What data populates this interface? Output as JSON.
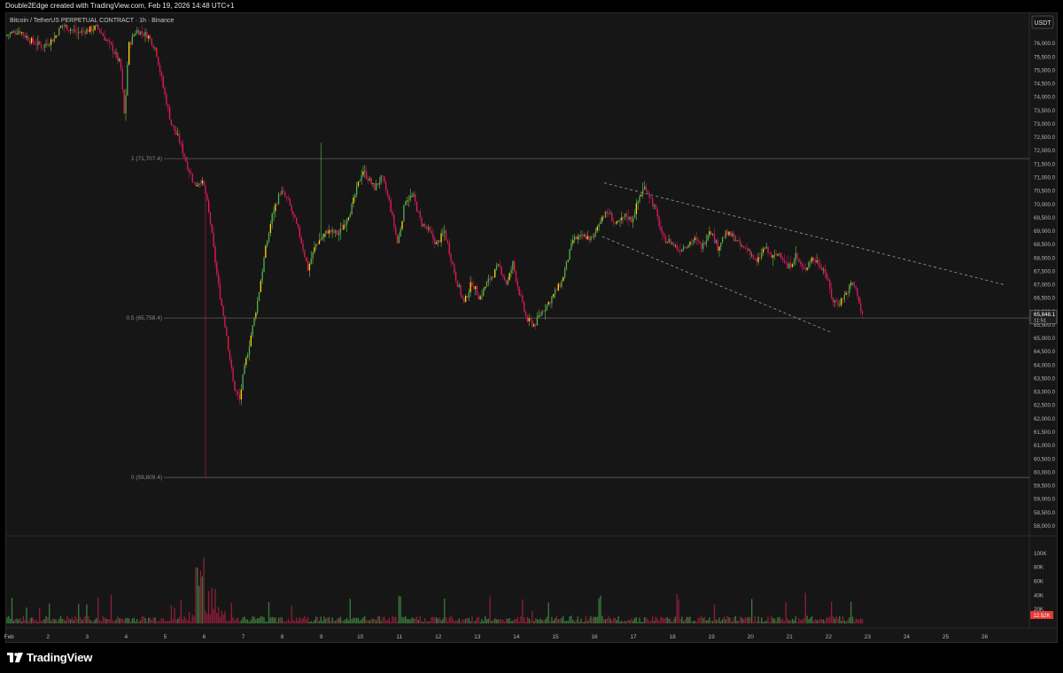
{
  "header": {
    "created_text": "Double2Edge created with TradingView.com, Feb 19, 2026 14:48 UTC+1"
  },
  "chart_data": {
    "type": "candlestick",
    "title": "Bitcoin / TetherUS PERPETUAL CONTRACT · 1h · Binance",
    "currency_label": "USDT",
    "ylim": [
      57700,
      76700
    ],
    "y_ticks": [
      76000,
      75500,
      75000,
      74500,
      74000,
      73500,
      73000,
      72500,
      72000,
      71500,
      71000,
      70500,
      70000,
      69500,
      69000,
      68500,
      68000,
      67500,
      67000,
      66500,
      66000,
      65500,
      65000,
      64500,
      64000,
      63500,
      63000,
      62500,
      62000,
      61500,
      61000,
      60500,
      60000,
      59500,
      59000,
      58500,
      58000
    ],
    "y_tick_labels": [
      "76,000.0",
      "75,500.0",
      "75,000.0",
      "74,500.0",
      "74,000.0",
      "73,500.0",
      "73,000.0",
      "72,500.0",
      "72,000.0",
      "71,500.0",
      "71,000.0",
      "70,500.0",
      "70,000.0",
      "69,500.0",
      "69,000.0",
      "68,500.0",
      "68,000.0",
      "67,500.0",
      "67,000.0",
      "66,500.0",
      "66,000.0",
      "65,500.0",
      "65,000.0",
      "64,500.0",
      "64,000.0",
      "63,500.0",
      "63,000.0",
      "62,500.0",
      "62,000.0",
      "61,500.0",
      "61,000.0",
      "60,500.0",
      "60,000.0",
      "59,500.0",
      "59,000.0",
      "58,500.0",
      "58,000.0"
    ],
    "x_ticks": [
      1,
      2,
      3,
      4,
      5,
      6,
      7,
      8,
      9,
      10,
      11,
      12,
      13,
      14,
      15,
      16,
      17,
      18,
      19,
      20,
      21,
      22,
      23,
      24,
      25,
      26
    ],
    "x_tick_labels": [
      "Feb",
      "2",
      "3",
      "4",
      "5",
      "6",
      "7",
      "8",
      "9",
      "10",
      "11",
      "12",
      "13",
      "14",
      "15",
      "16",
      "17",
      "18",
      "19",
      "20",
      "21",
      "22",
      "23",
      "24",
      "25",
      "26"
    ],
    "xlim": [
      0.95,
      27.1
    ],
    "price_path": [
      [
        0.95,
        76300
      ],
      [
        1.3,
        76500
      ],
      [
        1.6,
        76100
      ],
      [
        1.9,
        75900
      ],
      [
        2.2,
        76200
      ],
      [
        2.4,
        76700
      ],
      [
        2.8,
        76400
      ],
      [
        3.3,
        76600
      ],
      [
        3.7,
        75800
      ],
      [
        3.9,
        75200
      ],
      [
        4.0,
        73200
      ],
      [
        4.1,
        75900
      ],
      [
        4.3,
        76500
      ],
      [
        4.6,
        76300
      ],
      [
        4.8,
        75800
      ],
      [
        5.0,
        74300
      ],
      [
        5.2,
        73000
      ],
      [
        5.4,
        72400
      ],
      [
        5.6,
        71500
      ],
      [
        5.8,
        70700
      ],
      [
        5.95,
        70900
      ],
      [
        6.05,
        70600
      ],
      [
        6.2,
        69300
      ],
      [
        6.4,
        67000
      ],
      [
        6.6,
        65300
      ],
      [
        6.8,
        63200
      ],
      [
        6.95,
        62700
      ],
      [
        7.05,
        63700
      ],
      [
        7.2,
        64800
      ],
      [
        7.4,
        66300
      ],
      [
        7.6,
        68200
      ],
      [
        7.8,
        69700
      ],
      [
        8.0,
        70500
      ],
      [
        8.2,
        70100
      ],
      [
        8.5,
        68800
      ],
      [
        8.7,
        67600
      ],
      [
        8.9,
        68500
      ],
      [
        9.2,
        69000
      ],
      [
        9.5,
        68900
      ],
      [
        9.8,
        69800
      ],
      [
        10.1,
        71300
      ],
      [
        10.4,
        70600
      ],
      [
        10.6,
        71000
      ],
      [
        10.8,
        70000
      ],
      [
        11.0,
        68500
      ],
      [
        11.2,
        70200
      ],
      [
        11.4,
        70300
      ],
      [
        11.6,
        69300
      ],
      [
        11.8,
        69000
      ],
      [
        12.0,
        68500
      ],
      [
        12.2,
        69000
      ],
      [
        12.3,
        68400
      ],
      [
        12.5,
        67200
      ],
      [
        12.7,
        66300
      ],
      [
        12.9,
        67100
      ],
      [
        13.1,
        66500
      ],
      [
        13.3,
        67100
      ],
      [
        13.6,
        67700
      ],
      [
        13.8,
        67000
      ],
      [
        13.95,
        67800
      ],
      [
        14.1,
        66800
      ],
      [
        14.3,
        65700
      ],
      [
        14.5,
        65500
      ],
      [
        14.7,
        66000
      ],
      [
        14.9,
        66400
      ],
      [
        15.2,
        67100
      ],
      [
        15.5,
        68700
      ],
      [
        15.8,
        68800
      ],
      [
        16.0,
        68700
      ],
      [
        16.2,
        69500
      ],
      [
        16.4,
        69700
      ],
      [
        16.6,
        69200
      ],
      [
        16.85,
        69600
      ],
      [
        17.0,
        69400
      ],
      [
        17.2,
        70300
      ],
      [
        17.35,
        70700
      ],
      [
        17.6,
        69800
      ],
      [
        17.8,
        68700
      ],
      [
        18.0,
        68600
      ],
      [
        18.2,
        68300
      ],
      [
        18.4,
        68500
      ],
      [
        18.6,
        68700
      ],
      [
        18.8,
        68400
      ],
      [
        19.0,
        69100
      ],
      [
        19.2,
        68400
      ],
      [
        19.4,
        68900
      ],
      [
        19.6,
        68800
      ],
      [
        19.8,
        68400
      ],
      [
        20.0,
        68300
      ],
      [
        20.2,
        67800
      ],
      [
        20.4,
        68400
      ],
      [
        20.6,
        68000
      ],
      [
        20.8,
        68200
      ],
      [
        21.0,
        67600
      ],
      [
        21.2,
        68100
      ],
      [
        21.4,
        67500
      ],
      [
        21.6,
        68000
      ],
      [
        21.8,
        67800
      ],
      [
        21.95,
        67500
      ],
      [
        22.15,
        66400
      ],
      [
        22.3,
        66300
      ],
      [
        22.5,
        66700
      ],
      [
        22.65,
        67100
      ],
      [
        22.8,
        66600
      ],
      [
        22.88,
        65900
      ]
    ],
    "annotations": {
      "fib_levels": [
        {
          "value": 71707.4,
          "label": "1 (71,707.4)"
        },
        {
          "value": 65758.4,
          "label": "0.5 (65,758.4)"
        },
        {
          "value": 59809.4,
          "label": "0 (59,809.4)"
        }
      ],
      "channel_upper": [
        [
          16.25,
          70800
        ],
        [
          26.5,
          67000
        ]
      ],
      "channel_lower": [
        [
          16.2,
          68800
        ],
        [
          22.1,
          65200
        ]
      ]
    },
    "current_price": {
      "value": 65848.1,
      "label": "65,848.1",
      "timer": "11:51"
    },
    "volume": {
      "ylim": [
        0,
        110000
      ],
      "tick_labels": [
        "100K",
        "80K",
        "60K",
        "40K",
        "20K"
      ],
      "ticks": [
        100000,
        80000,
        60000,
        40000,
        20000
      ],
      "current_label": "12.52K"
    },
    "grid": false
  },
  "footer": {
    "brand": "TradingView"
  }
}
